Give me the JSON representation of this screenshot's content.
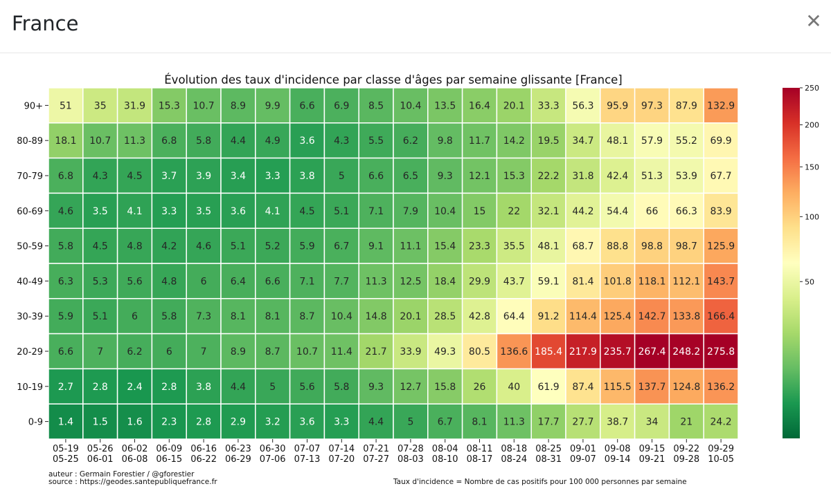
{
  "modal": {
    "title": "France",
    "close_icon": "close-icon"
  },
  "chart_data": {
    "type": "heatmap",
    "title": "Évolution des taux d'incidence par classe d'âges par semaine glissante [France]",
    "x_categories": [
      [
        "05-19",
        "05-25"
      ],
      [
        "05-26",
        "06-01"
      ],
      [
        "06-02",
        "06-08"
      ],
      [
        "06-09",
        "06-15"
      ],
      [
        "06-16",
        "06-22"
      ],
      [
        "06-23",
        "06-29"
      ],
      [
        "06-30",
        "07-06"
      ],
      [
        "07-07",
        "07-13"
      ],
      [
        "07-14",
        "07-20"
      ],
      [
        "07-21",
        "07-27"
      ],
      [
        "07-28",
        "08-03"
      ],
      [
        "08-04",
        "08-10"
      ],
      [
        "08-11",
        "08-17"
      ],
      [
        "08-18",
        "08-24"
      ],
      [
        "08-25",
        "08-31"
      ],
      [
        "09-01",
        "09-07"
      ],
      [
        "09-08",
        "09-14"
      ],
      [
        "09-15",
        "09-21"
      ],
      [
        "09-22",
        "09-28"
      ],
      [
        "09-29",
        "10-05"
      ]
    ],
    "y_categories": [
      "90+",
      "80-89",
      "70-79",
      "60-69",
      "50-59",
      "40-49",
      "30-39",
      "20-29",
      "10-19",
      "0-9"
    ],
    "values": [
      [
        "51",
        "35",
        "31.9",
        "15.3",
        "10.7",
        "8.9",
        "9.9",
        "6.6",
        "6.9",
        "8.5",
        "10.4",
        "13.5",
        "16.4",
        "20.1",
        "33.3",
        "56.3",
        "95.9",
        "97.3",
        "87.9",
        "132.9"
      ],
      [
        "18.1",
        "10.7",
        "11.3",
        "6.8",
        "5.8",
        "4.4",
        "4.9",
        "3.6",
        "4.3",
        "5.5",
        "6.2",
        "9.8",
        "11.7",
        "14.2",
        "19.5",
        "34.7",
        "48.1",
        "57.9",
        "55.2",
        "69.9"
      ],
      [
        "6.8",
        "4.3",
        "4.5",
        "3.7",
        "3.9",
        "3.4",
        "3.3",
        "3.8",
        "5",
        "6.6",
        "6.5",
        "9.3",
        "12.1",
        "15.3",
        "22.2",
        "31.8",
        "42.4",
        "51.3",
        "53.9",
        "67.7"
      ],
      [
        "4.6",
        "3.5",
        "4.1",
        "3.3",
        "3.5",
        "3.6",
        "4.1",
        "4.5",
        "5.1",
        "7.1",
        "7.9",
        "10.4",
        "15",
        "22",
        "32.1",
        "44.2",
        "54.4",
        "66",
        "66.3",
        "83.9"
      ],
      [
        "5.8",
        "4.5",
        "4.8",
        "4.2",
        "4.6",
        "5.1",
        "5.2",
        "5.9",
        "6.7",
        "9.1",
        "11.1",
        "15.4",
        "23.3",
        "35.5",
        "48.1",
        "68.7",
        "88.8",
        "98.8",
        "98.7",
        "125.9"
      ],
      [
        "6.3",
        "5.3",
        "5.6",
        "4.8",
        "6",
        "6.4",
        "6.6",
        "7.1",
        "7.7",
        "11.3",
        "12.5",
        "18.4",
        "29.9",
        "43.7",
        "59.1",
        "81.4",
        "101.8",
        "118.1",
        "112.1",
        "143.7"
      ],
      [
        "5.9",
        "5.1",
        "6",
        "5.8",
        "7.3",
        "8.1",
        "8.1",
        "8.7",
        "10.4",
        "14.8",
        "20.1",
        "28.5",
        "42.8",
        "64.4",
        "91.2",
        "114.4",
        "125.4",
        "142.7",
        "133.8",
        "166.4"
      ],
      [
        "6.6",
        "7",
        "6.2",
        "6",
        "7",
        "8.9",
        "8.7",
        "10.7",
        "11.4",
        "21.7",
        "33.9",
        "49.3",
        "80.5",
        "136.6",
        "185.4",
        "217.9",
        "235.7",
        "267.4",
        "248.2",
        "275.8"
      ],
      [
        "2.7",
        "2.8",
        "2.4",
        "2.8",
        "3.8",
        "4.4",
        "5",
        "5.6",
        "5.8",
        "9.3",
        "12.7",
        "15.8",
        "26",
        "40",
        "61.9",
        "87.4",
        "115.5",
        "137.7",
        "124.8",
        "136.2"
      ],
      [
        "1.4",
        "1.5",
        "1.6",
        "2.3",
        "2.8",
        "2.9",
        "3.2",
        "3.6",
        "3.3",
        "4.4",
        "5",
        "6.7",
        "8.1",
        "11.3",
        "17.7",
        "27.7",
        "38.7",
        "34",
        "21",
        "24.2"
      ]
    ],
    "colormap": "RdYlGn_r",
    "color_scale": "sqrt",
    "vmin": 0,
    "vmax": 250,
    "colorbar_ticks": [
      "50",
      "100",
      "150",
      "200",
      "250"
    ],
    "footnote_left": [
      "auteur : Germain Forestier / @gforestier",
      "source : https://geodes.santepubliquefrance.fr"
    ],
    "footnote_right": "Taux d'incidence = Nombre de cas positifs pour 100 000 personnes par semaine"
  }
}
